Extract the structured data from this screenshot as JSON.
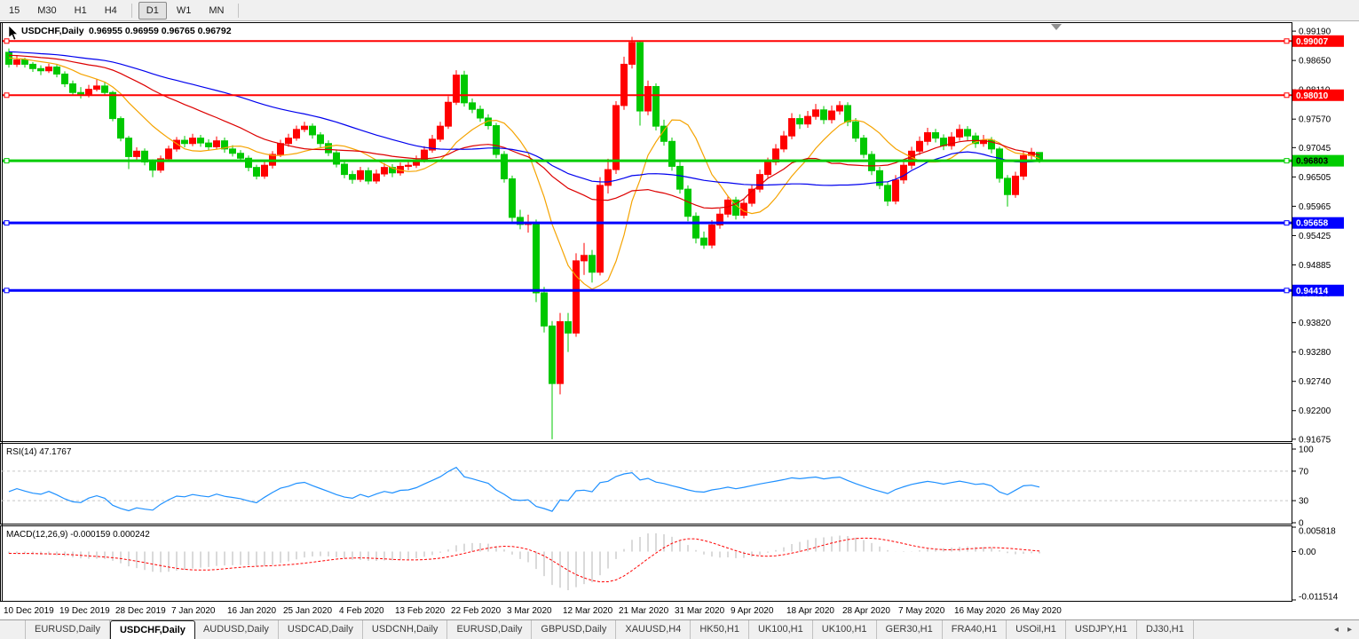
{
  "toolbar": {
    "timeframes": [
      "15",
      "M30",
      "H1",
      "H4",
      "D1",
      "W1",
      "MN"
    ],
    "active": "D1"
  },
  "chart_header": {
    "symbol": "USDCHF,Daily",
    "ohlc": "0.96955 0.96959 0.96765 0.96792"
  },
  "price_axis": {
    "labels": [
      {
        "text": "0.99190",
        "value": 0.9919
      },
      {
        "text": "0.98650",
        "value": 0.9865
      },
      {
        "text": "0.98110",
        "value": 0.9811
      },
      {
        "text": "0.97570",
        "value": 0.9757
      },
      {
        "text": "0.97045",
        "value": 0.97045
      },
      {
        "text": "0.96505",
        "value": 0.96505
      },
      {
        "text": "0.95965",
        "value": 0.95965
      },
      {
        "text": "0.95425",
        "value": 0.95425
      },
      {
        "text": "0.94885",
        "value": 0.94885
      },
      {
        "text": "0.94360",
        "value": 0.9436
      },
      {
        "text": "0.93820",
        "value": 0.9382
      },
      {
        "text": "0.93280",
        "value": 0.9328
      },
      {
        "text": "0.92740",
        "value": 0.9274
      },
      {
        "text": "0.92200",
        "value": 0.922
      },
      {
        "text": "0.91675",
        "value": 0.91675
      }
    ]
  },
  "hlines": [
    {
      "price": 0.99007,
      "label": "0.99007",
      "color": "#ff0000",
      "width": 2,
      "text_color": "#ffffff"
    },
    {
      "price": 0.9801,
      "label": "0.98010",
      "color": "#ff0000",
      "width": 2,
      "text_color": "#ffffff"
    },
    {
      "price": 0.96803,
      "label": "0.96803",
      "color": "#00cc00",
      "width": 3,
      "text_color": "#000000"
    },
    {
      "price": 0.95658,
      "label": "0.95658",
      "color": "#0000ff",
      "width": 3,
      "text_color": "#ffffff"
    },
    {
      "price": 0.94414,
      "label": "0.94414",
      "color": "#0000ff",
      "width": 3,
      "text_color": "#ffffff"
    }
  ],
  "chart_data": {
    "type": "candlestick",
    "symbol": "USDCHF",
    "timeframe": "Daily",
    "last_ohlc": {
      "open": 0.96955,
      "high": 0.96959,
      "low": 0.96765,
      "close": 0.96792
    },
    "colors": {
      "up": "#ff0000",
      "down": "#00c800"
    },
    "x_labels": [
      "10 Dec 2019",
      "19 Dec 2019",
      "28 Dec 2019",
      "7 Jan 2020",
      "16 Jan 2020",
      "25 Jan 2020",
      "4 Feb 2020",
      "13 Feb 2020",
      "22 Feb 2020",
      "3 Mar 2020",
      "12 Mar 2020",
      "21 Mar 2020",
      "31 Mar 2020",
      "9 Apr 2020",
      "18 Apr 2020",
      "28 Apr 2020",
      "7 May 2020",
      "16 May 2020",
      "26 May 2020"
    ],
    "x_label_candle_step": 7,
    "moving_averages": [
      {
        "period": 10,
        "color": "#f5a300"
      },
      {
        "period": 25,
        "color": "#dd0000"
      },
      {
        "period": 45,
        "color": "#0000ee"
      }
    ],
    "warmup": {
      "start": 0.9905,
      "end": 0.9868,
      "count": 60,
      "jitter": 0.0004
    },
    "candles": [
      [
        0.988,
        0.9887,
        0.9852,
        0.9858
      ],
      [
        0.9858,
        0.9874,
        0.9853,
        0.9866
      ],
      [
        0.9866,
        0.987,
        0.9852,
        0.9858
      ],
      [
        0.9858,
        0.9862,
        0.9844,
        0.985
      ],
      [
        0.985,
        0.9856,
        0.9838,
        0.9846
      ],
      [
        0.9846,
        0.9859,
        0.9842,
        0.9853
      ],
      [
        0.9853,
        0.9857,
        0.9834,
        0.984
      ],
      [
        0.984,
        0.9845,
        0.9816,
        0.9822
      ],
      [
        0.9822,
        0.9828,
        0.9801,
        0.9806
      ],
      [
        0.9806,
        0.9816,
        0.9795,
        0.9801
      ],
      [
        0.9801,
        0.982,
        0.9797,
        0.9812
      ],
      [
        0.9812,
        0.983,
        0.9808,
        0.9818
      ],
      [
        0.9818,
        0.9826,
        0.98,
        0.9806
      ],
      [
        0.9806,
        0.9809,
        0.9753,
        0.9758
      ],
      [
        0.9758,
        0.9762,
        0.9716,
        0.9722
      ],
      [
        0.9722,
        0.9726,
        0.9665,
        0.9688
      ],
      [
        0.9688,
        0.9705,
        0.9682,
        0.9698
      ],
      [
        0.9698,
        0.9703,
        0.9672,
        0.9678
      ],
      [
        0.9678,
        0.9683,
        0.965,
        0.9663
      ],
      [
        0.9663,
        0.969,
        0.9658,
        0.9684
      ],
      [
        0.9684,
        0.9708,
        0.9679,
        0.9702
      ],
      [
        0.9702,
        0.9724,
        0.9697,
        0.9718
      ],
      [
        0.9718,
        0.9726,
        0.9705,
        0.9712
      ],
      [
        0.9712,
        0.973,
        0.9707,
        0.9722
      ],
      [
        0.9722,
        0.9728,
        0.9706,
        0.9713
      ],
      [
        0.9713,
        0.972,
        0.97,
        0.9706
      ],
      [
        0.9706,
        0.9725,
        0.9701,
        0.9717
      ],
      [
        0.9717,
        0.9723,
        0.9695,
        0.9702
      ],
      [
        0.9702,
        0.9709,
        0.9688,
        0.9694
      ],
      [
        0.9694,
        0.97,
        0.9679,
        0.9685
      ],
      [
        0.9685,
        0.969,
        0.9661,
        0.9668
      ],
      [
        0.9668,
        0.9673,
        0.9646,
        0.9652
      ],
      [
        0.9652,
        0.9679,
        0.9647,
        0.9672
      ],
      [
        0.9672,
        0.9698,
        0.9666,
        0.9692
      ],
      [
        0.9692,
        0.9719,
        0.9687,
        0.9712
      ],
      [
        0.9712,
        0.973,
        0.9706,
        0.9722
      ],
      [
        0.9722,
        0.9745,
        0.9717,
        0.9738
      ],
      [
        0.9738,
        0.9752,
        0.9733,
        0.9744
      ],
      [
        0.9744,
        0.9749,
        0.9721,
        0.9728
      ],
      [
        0.9728,
        0.9733,
        0.9705,
        0.9712
      ],
      [
        0.9712,
        0.9718,
        0.9689,
        0.9695
      ],
      [
        0.9695,
        0.9701,
        0.9668,
        0.9674
      ],
      [
        0.9674,
        0.968,
        0.9648,
        0.9655
      ],
      [
        0.9655,
        0.9662,
        0.9638,
        0.9646
      ],
      [
        0.9646,
        0.9669,
        0.9641,
        0.9662
      ],
      [
        0.9662,
        0.9668,
        0.9637,
        0.9643
      ],
      [
        0.9643,
        0.9664,
        0.9638,
        0.9656
      ],
      [
        0.9656,
        0.9676,
        0.9651,
        0.9668
      ],
      [
        0.9668,
        0.9674,
        0.965,
        0.9658
      ],
      [
        0.9658,
        0.9677,
        0.9653,
        0.967
      ],
      [
        0.967,
        0.9681,
        0.9663,
        0.9672
      ],
      [
        0.9672,
        0.969,
        0.9667,
        0.9682
      ],
      [
        0.9682,
        0.9707,
        0.9677,
        0.97
      ],
      [
        0.97,
        0.9728,
        0.9695,
        0.972
      ],
      [
        0.972,
        0.9752,
        0.9715,
        0.9744
      ],
      [
        0.9744,
        0.9799,
        0.9739,
        0.9788
      ],
      [
        0.9788,
        0.9847,
        0.9783,
        0.9838
      ],
      [
        0.9838,
        0.9846,
        0.978,
        0.9787
      ],
      [
        0.9787,
        0.9795,
        0.9768,
        0.9775
      ],
      [
        0.9775,
        0.9782,
        0.9752,
        0.9759
      ],
      [
        0.9759,
        0.9766,
        0.9738,
        0.9745
      ],
      [
        0.9745,
        0.975,
        0.9685,
        0.9692
      ],
      [
        0.9692,
        0.9698,
        0.964,
        0.9647
      ],
      [
        0.9647,
        0.9653,
        0.9568,
        0.9576
      ],
      [
        0.9576,
        0.959,
        0.9554,
        0.9563
      ],
      [
        0.9563,
        0.9581,
        0.9548,
        0.9567
      ],
      [
        0.9567,
        0.9572,
        0.942,
        0.9437
      ],
      [
        0.9437,
        0.9448,
        0.9364,
        0.9376
      ],
      [
        0.9376,
        0.9385,
        0.91675,
        0.927
      ],
      [
        0.927,
        0.94,
        0.925,
        0.9384
      ],
      [
        0.9384,
        0.94,
        0.9328,
        0.9363
      ],
      [
        0.9363,
        0.951,
        0.9356,
        0.9496
      ],
      [
        0.9496,
        0.9529,
        0.947,
        0.9506
      ],
      [
        0.9506,
        0.9516,
        0.9456,
        0.9475
      ],
      [
        0.9475,
        0.965,
        0.9469,
        0.9635
      ],
      [
        0.9635,
        0.9684,
        0.962,
        0.9664
      ],
      [
        0.9664,
        0.979,
        0.9656,
        0.9782
      ],
      [
        0.9782,
        0.9872,
        0.9774,
        0.9858
      ],
      [
        0.9858,
        0.99085,
        0.985,
        0.9898
      ],
      [
        0.9898,
        0.9902,
        0.9745,
        0.9772
      ],
      [
        0.9772,
        0.9828,
        0.9764,
        0.9817
      ],
      [
        0.9817,
        0.9823,
        0.9736,
        0.9744
      ],
      [
        0.9744,
        0.9756,
        0.9708,
        0.9716
      ],
      [
        0.9716,
        0.9723,
        0.9662,
        0.967
      ],
      [
        0.967,
        0.9678,
        0.962,
        0.9628
      ],
      [
        0.9628,
        0.9635,
        0.9569,
        0.9578
      ],
      [
        0.9578,
        0.9585,
        0.9528,
        0.9538
      ],
      [
        0.9538,
        0.955,
        0.9518,
        0.9525
      ],
      [
        0.9525,
        0.9571,
        0.9519,
        0.9562
      ],
      [
        0.9562,
        0.9592,
        0.9555,
        0.9582
      ],
      [
        0.9582,
        0.9616,
        0.9576,
        0.9608
      ],
      [
        0.9608,
        0.9614,
        0.9572,
        0.958
      ],
      [
        0.958,
        0.961,
        0.9574,
        0.9602
      ],
      [
        0.9602,
        0.9636,
        0.9596,
        0.9628
      ],
      [
        0.9628,
        0.9664,
        0.9622,
        0.9655
      ],
      [
        0.9655,
        0.9686,
        0.9649,
        0.9678
      ],
      [
        0.9678,
        0.9711,
        0.9672,
        0.9702
      ],
      [
        0.9702,
        0.9735,
        0.9696,
        0.9726
      ],
      [
        0.9726,
        0.9768,
        0.972,
        0.9758
      ],
      [
        0.9758,
        0.9766,
        0.9739,
        0.9748
      ],
      [
        0.9748,
        0.9772,
        0.9741,
        0.9762
      ],
      [
        0.9762,
        0.9785,
        0.9756,
        0.9774
      ],
      [
        0.9774,
        0.9781,
        0.9748,
        0.9756
      ],
      [
        0.9756,
        0.9782,
        0.9749,
        0.9772
      ],
      [
        0.9772,
        0.979,
        0.9765,
        0.9782
      ],
      [
        0.9782,
        0.9788,
        0.9744,
        0.9752
      ],
      [
        0.9752,
        0.9759,
        0.9715,
        0.9722
      ],
      [
        0.9722,
        0.9728,
        0.9685,
        0.9692
      ],
      [
        0.9692,
        0.9698,
        0.9654,
        0.9662
      ],
      [
        0.9662,
        0.9669,
        0.9628,
        0.9635
      ],
      [
        0.9635,
        0.9642,
        0.9597,
        0.9606
      ],
      [
        0.9606,
        0.9654,
        0.96,
        0.9645
      ],
      [
        0.9645,
        0.968,
        0.9638,
        0.9672
      ],
      [
        0.9672,
        0.9706,
        0.9665,
        0.9698
      ],
      [
        0.9698,
        0.9725,
        0.9691,
        0.9716
      ],
      [
        0.9716,
        0.9741,
        0.9709,
        0.9732
      ],
      [
        0.9732,
        0.9739,
        0.9714,
        0.9722
      ],
      [
        0.9722,
        0.9729,
        0.97,
        0.9708
      ],
      [
        0.9708,
        0.9733,
        0.9701,
        0.9724
      ],
      [
        0.9724,
        0.9747,
        0.9717,
        0.9738
      ],
      [
        0.9738,
        0.9744,
        0.9718,
        0.9726
      ],
      [
        0.9726,
        0.9732,
        0.9704,
        0.9712
      ],
      [
        0.9712,
        0.9728,
        0.9706,
        0.9718
      ],
      [
        0.9718,
        0.9724,
        0.9694,
        0.9702
      ],
      [
        0.9702,
        0.9706,
        0.964,
        0.9648
      ],
      [
        0.9648,
        0.9654,
        0.9596,
        0.9618
      ],
      [
        0.9618,
        0.966,
        0.9612,
        0.9652
      ],
      [
        0.9652,
        0.9698,
        0.9645,
        0.969
      ],
      [
        0.969,
        0.9704,
        0.9683,
        0.9696
      ],
      [
        0.96955,
        0.96959,
        0.96765,
        0.96792
      ]
    ]
  },
  "rsi_panel": {
    "title": "RSI(14) 47.1767",
    "period": 14,
    "current_value": 47.1767,
    "color": "#1e90ff",
    "levels": [
      {
        "text": "100",
        "value": 100
      },
      {
        "text": "70",
        "value": 70
      },
      {
        "text": "30",
        "value": 30
      },
      {
        "text": "0",
        "value": 0
      }
    ]
  },
  "macd_panel": {
    "title": "MACD(12,26,9) -0.000159 0.000242",
    "fast": 12,
    "slow": 26,
    "signal": 9,
    "main_value": -0.000159,
    "signal_value": 0.000242,
    "hist_color": "#b4b4b4",
    "signal_color": "#ff0000",
    "axis_labels": [
      {
        "text": "0.005818",
        "value": 0.005818
      },
      {
        "text": "0.00",
        "value": 0
      },
      {
        "text": "-0.011514",
        "value": -0.011514
      }
    ]
  },
  "tabs": {
    "items": [
      "EURUSD,Daily",
      "USDCHF,Daily",
      "AUDUSD,Daily",
      "USDCAD,Daily",
      "USDCNH,Daily",
      "EURUSD,Daily",
      "GBPUSD,Daily",
      "XAUUSD,H4",
      "HK50,H1",
      "UK100,H1",
      "UK100,H1",
      "GER30,H1",
      "FRA40,H1",
      "USOil,H1",
      "USDJPY,H1",
      "DJ30,H1"
    ],
    "active_index": 1,
    "scroll_left": "◂",
    "scroll_right": "▸"
  }
}
